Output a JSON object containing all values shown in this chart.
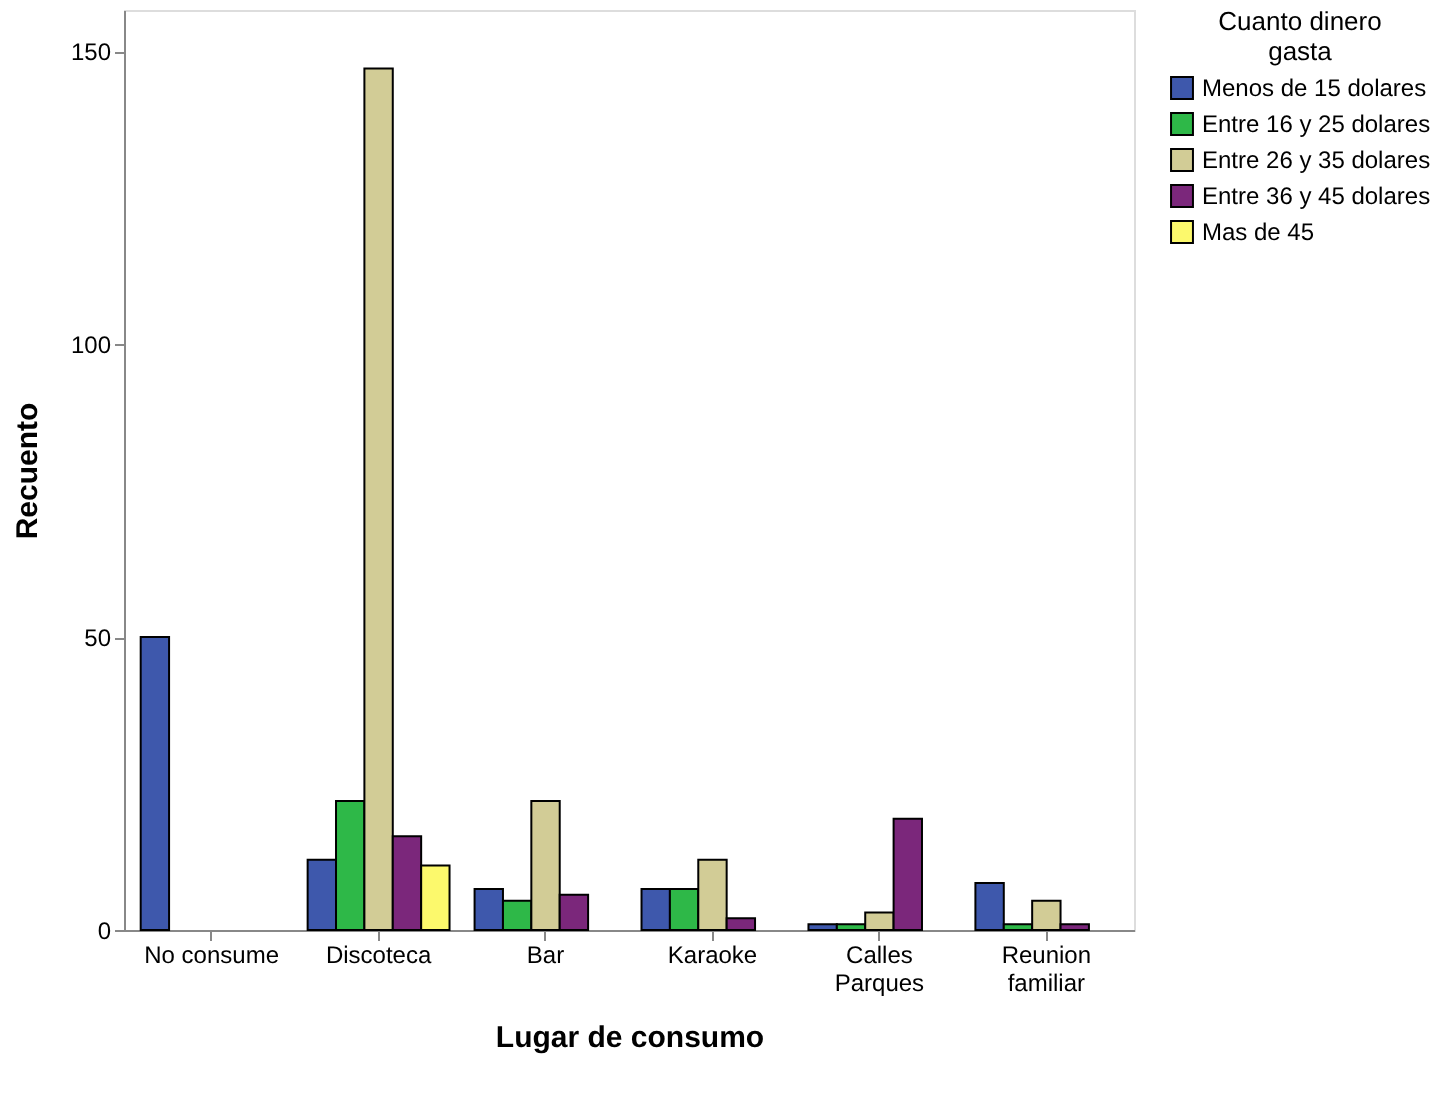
{
  "chart_data": {
    "type": "bar",
    "xlabel": "Lugar de consumo",
    "ylabel": "Recuento",
    "legend_title": "Cuanto dinero\ngasta",
    "legend": "top right",
    "grid": false,
    "categories": [
      "No consume",
      "Discoteca",
      "Bar",
      "Karaoke",
      "Calles\nParques",
      "Reunion\nfamiliar"
    ],
    "ylim": [
      0,
      157
    ],
    "yticks": [
      0,
      50,
      100,
      150
    ],
    "series": [
      {
        "name": "Menos de 15 dolares",
        "color": "#3e58ac",
        "values": [
          50,
          12,
          7,
          7,
          1,
          8
        ]
      },
      {
        "name": "Entre 16 y 25 dolares",
        "color": "#2eb848",
        "values": [
          null,
          22,
          5,
          7,
          1,
          1
        ]
      },
      {
        "name": "Entre 26 y 35 dolares",
        "color": "#d2cc96",
        "values": [
          null,
          147,
          22,
          12,
          3,
          5
        ]
      },
      {
        "name": "Entre 36 y 45 dolares",
        "color": "#7b277b",
        "values": [
          null,
          16,
          6,
          2,
          19,
          1
        ]
      },
      {
        "name": "Mas de 45",
        "color": "#fcf96c",
        "values": [
          null,
          11,
          null,
          null,
          null,
          null
        ]
      }
    ]
  }
}
